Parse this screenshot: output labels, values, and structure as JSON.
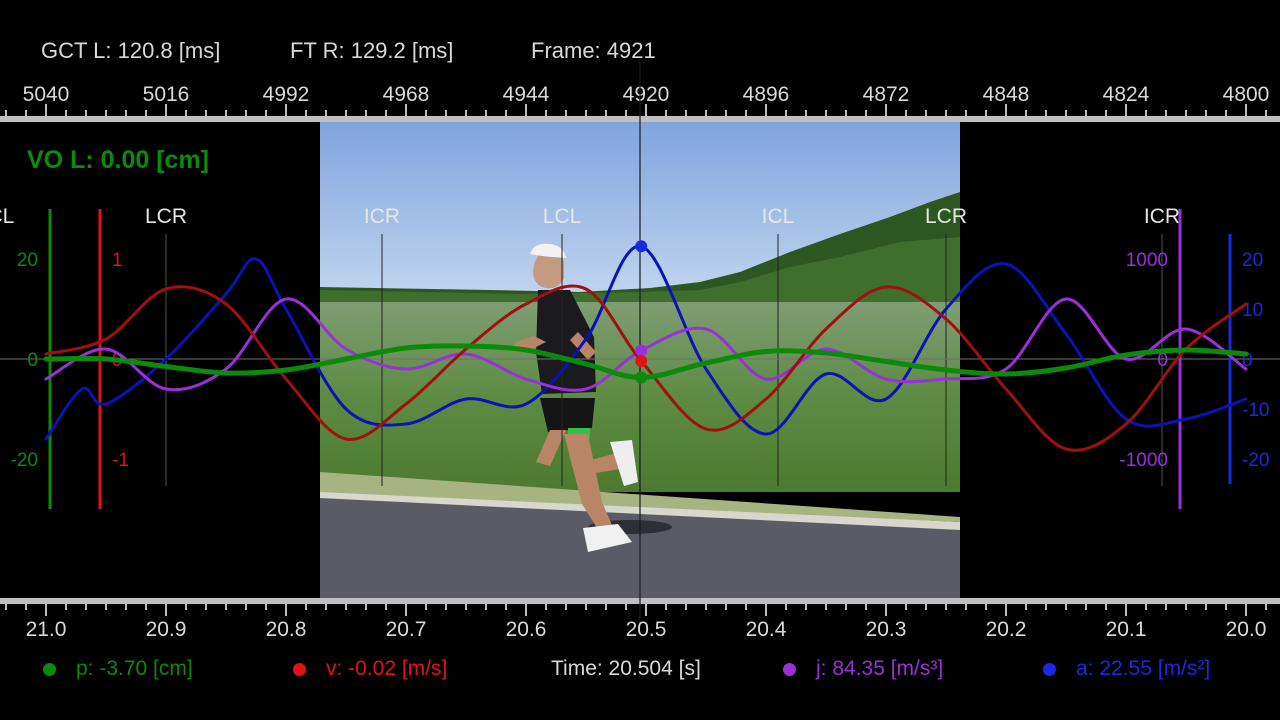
{
  "header": {
    "gct_left": "GCT L: 120.8 [ms]",
    "ft_right": "FT R: 129.2 [ms]",
    "frame": "Frame: 4921"
  },
  "frame_axis": {
    "ticks": [
      "5040",
      "5016",
      "4992",
      "4968",
      "4944",
      "4920",
      "4896",
      "4872",
      "4848",
      "4824",
      "4800"
    ],
    "range": [
      5040,
      4800
    ]
  },
  "time_axis": {
    "ticks": [
      "21.0",
      "20.9",
      "20.8",
      "20.7",
      "20.6",
      "20.5",
      "20.4",
      "20.3",
      "20.2",
      "20.1",
      "20.0"
    ],
    "range": [
      21.0,
      20.0
    ],
    "cursor_time": 20.504
  },
  "overlay_label": "VO L: 0.00 [cm]",
  "footer": {
    "p": "p: -3.70 [cm]",
    "v": "v: -0.02 [m/s]",
    "time": "Time: 20.504 [s]",
    "j": "j: 84.35 [m/s³]",
    "a": "a: 22.55 [m/s²]"
  },
  "colors": {
    "p": "#0b8a0b",
    "v": "#a01010",
    "j": "#9b30d9",
    "a": "#0a14b4",
    "text": "#d9d9d9"
  },
  "chart_data": {
    "type": "line",
    "x_label": "Time [s]",
    "xlim": [
      21.0,
      20.0
    ],
    "events": [
      {
        "label": "ICL",
        "t": 21.04
      },
      {
        "label": "LCR",
        "t": 20.9
      },
      {
        "label": "ICR",
        "t": 20.72
      },
      {
        "label": "LCL",
        "t": 20.57
      },
      {
        "label": "ICL",
        "t": 20.39
      },
      {
        "label": "LCR",
        "t": 20.25
      },
      {
        "label": "ICR",
        "t": 20.07
      }
    ],
    "axes": [
      {
        "name": "p",
        "ticks": [
          "20",
          "0",
          "-20"
        ],
        "range": [
          -20,
          20
        ]
      },
      {
        "name": "v",
        "ticks": [
          "1",
          "0",
          "-1"
        ],
        "range": [
          -1,
          1
        ]
      },
      {
        "name": "j",
        "ticks": [
          "1000",
          "0",
          "-1000"
        ],
        "range": [
          -1000,
          1000
        ]
      },
      {
        "name": "a",
        "ticks": [
          "20",
          "10",
          "0",
          "-10",
          "-20"
        ],
        "range": [
          -20,
          20
        ]
      }
    ],
    "series": [
      {
        "name": "p",
        "unit": "cm",
        "x": [
          21.0,
          20.95,
          20.9,
          20.85,
          20.8,
          20.75,
          20.7,
          20.65,
          20.6,
          20.55,
          20.504,
          20.45,
          20.4,
          20.35,
          20.3,
          20.25,
          20.2,
          20.15,
          20.1,
          20.05,
          20.0
        ],
        "y": [
          0,
          0,
          -1.5,
          -2.8,
          -2.2,
          0,
          2.2,
          2.6,
          1.8,
          -1,
          -3.7,
          -0.8,
          1.5,
          1.2,
          -0.5,
          -2.2,
          -3,
          -1.8,
          0.8,
          1.8,
          1
        ]
      },
      {
        "name": "v",
        "unit": "m/s",
        "x": [
          21.0,
          20.95,
          20.9,
          20.85,
          20.8,
          20.75,
          20.7,
          20.65,
          20.6,
          20.55,
          20.504,
          20.45,
          20.4,
          20.35,
          20.3,
          20.25,
          20.2,
          20.15,
          20.1,
          20.05,
          20.0
        ],
        "y": [
          0.05,
          0.2,
          0.7,
          0.55,
          -0.2,
          -0.8,
          -0.45,
          0.1,
          0.55,
          0.7,
          -0.02,
          -0.7,
          -0.4,
          0.3,
          0.72,
          0.4,
          -0.3,
          -0.9,
          -0.65,
          0.1,
          0.55
        ]
      },
      {
        "name": "j",
        "unit": "m/s³",
        "x": [
          21.0,
          20.95,
          20.9,
          20.85,
          20.8,
          20.75,
          20.7,
          20.65,
          20.6,
          20.55,
          20.504,
          20.45,
          20.4,
          20.35,
          20.3,
          20.25,
          20.2,
          20.15,
          20.1,
          20.05,
          20.0
        ],
        "y": [
          -200,
          100,
          -300,
          -100,
          600,
          100,
          -100,
          50,
          -200,
          -300,
          84,
          300,
          -200,
          100,
          -200,
          -200,
          -100,
          600,
          0,
          300,
          -100
        ]
      },
      {
        "name": "a",
        "unit": "m/s²",
        "x": [
          21.0,
          20.97,
          20.95,
          20.9,
          20.85,
          20.825,
          20.8,
          20.75,
          20.7,
          20.65,
          20.6,
          20.55,
          20.504,
          20.45,
          20.4,
          20.35,
          20.3,
          20.25,
          20.2,
          20.15,
          20.1,
          20.05,
          20.0
        ],
        "y": [
          -16,
          -6,
          -9,
          0,
          13,
          20,
          10,
          -10,
          -13,
          -8,
          -9,
          4,
          22.55,
          -2,
          -15,
          -3,
          -8,
          10,
          19,
          5,
          -12,
          -12,
          -8
        ]
      }
    ]
  }
}
